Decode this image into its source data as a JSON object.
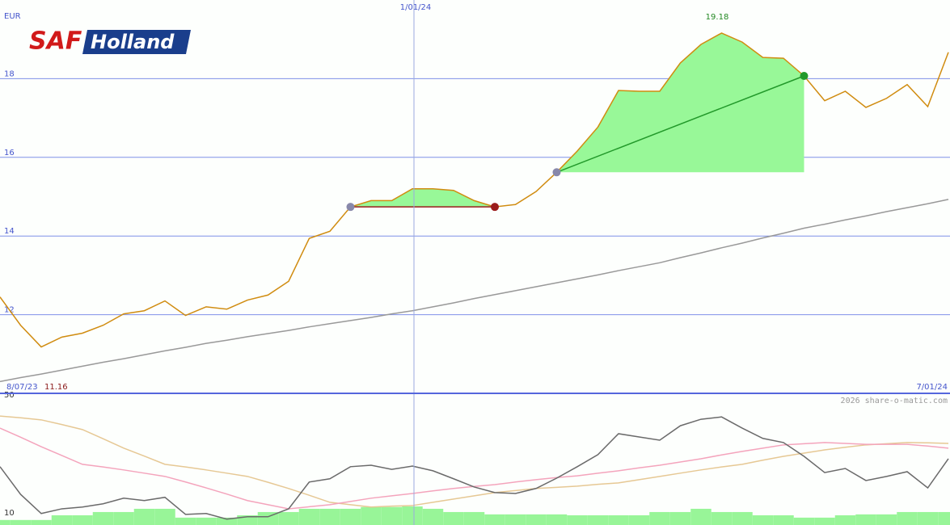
{
  "logo": {
    "left": "SAF",
    "right": "Holland"
  },
  "credit": "2026 share-o-matic.com",
  "chart_data": [
    {
      "type": "line",
      "unit": "EUR",
      "date_start": "8/07/23",
      "date_mid": "1/01/24",
      "date_end": "7/01/24",
      "max_label": 19.18,
      "min_label": 11.16,
      "ylim": [
        10,
        20
      ],
      "yticks": [
        12,
        14,
        16,
        18
      ],
      "grid": true,
      "series": [
        {
          "color": "#d08c10",
          "values": [
            12.45,
            11.73,
            11.18,
            11.43,
            11.53,
            11.73,
            12.02,
            12.1,
            12.35,
            11.98,
            12.2,
            12.14,
            12.37,
            12.5,
            12.85,
            13.94,
            14.12,
            14.74,
            14.9,
            14.9,
            15.2,
            15.2,
            15.16,
            14.9,
            14.74,
            14.8,
            15.13,
            15.62,
            16.16,
            16.77,
            17.7,
            17.68,
            17.68,
            18.4,
            18.87,
            19.16,
            18.93,
            18.54,
            18.52,
            18.07,
            17.44,
            17.68,
            17.27,
            17.5,
            17.85,
            17.29,
            18.67
          ]
        },
        {
          "color": "#999999",
          "values": [
            10.3,
            10.4,
            10.49,
            10.59,
            10.69,
            10.79,
            10.88,
            10.98,
            11.08,
            11.17,
            11.27,
            11.35,
            11.44,
            11.52,
            11.6,
            11.69,
            11.77,
            11.85,
            11.93,
            12.02,
            12.1,
            12.2,
            12.3,
            12.41,
            12.51,
            12.61,
            12.71,
            12.81,
            12.91,
            13.01,
            13.12,
            13.22,
            13.32,
            13.45,
            13.57,
            13.7,
            13.82,
            13.95,
            14.07,
            14.2,
            14.3,
            14.41,
            14.51,
            14.62,
            14.72,
            14.82,
            14.93
          ]
        }
      ],
      "trades": [
        {
          "color": "#9b1c1c",
          "values": [
            14.74,
            14.74
          ]
        },
        {
          "color": "#22992a",
          "values": [
            15.62,
            18.07
          ]
        }
      ]
    },
    {
      "type": "line",
      "ylim": [
        7.5,
        52.2
      ],
      "yticks": [
        10,
        50
      ],
      "bars": {
        "color": "#98f598",
        "values": [
          9.2,
          9.2,
          9.2,
          10.8,
          10.8,
          11.9,
          11.9,
          13.0,
          13.0,
          10.0,
          10.0,
          10.0,
          10.8,
          11.9,
          11.9,
          13.0,
          13.0,
          13.0,
          13.6,
          13.6,
          13.8,
          13.0,
          11.9,
          11.9,
          11.1,
          11.1,
          11.1,
          11.1,
          10.8,
          10.8,
          10.8,
          10.8,
          11.9,
          11.9,
          13.0,
          11.9,
          11.9,
          10.8,
          10.8,
          10.0,
          10.0,
          10.8,
          11.1,
          11.1,
          11.9,
          11.9,
          11.9
        ]
      },
      "series": [
        {
          "color": "#e6c894",
          "values": [
            44.5,
            43.9,
            43.2,
            41.6,
            39.9,
            36.8,
            33.6,
            30.9,
            28.1,
            27.2,
            26.2,
            25.1,
            24.0,
            22.0,
            19.9,
            17.6,
            15.2,
            14.4,
            13.6,
            13.9,
            14.1,
            15.2,
            16.3,
            17.4,
            18.5,
            19.2,
            19.9,
            20.3,
            20.7,
            21.3,
            21.8,
            22.9,
            24.0,
            25.1,
            26.2,
            27.2,
            28.1,
            29.5,
            30.8,
            31.9,
            33.0,
            33.9,
            34.7,
            35.1,
            35.5,
            35.4,
            35.2
          ]
        },
        {
          "color": "#f4a4bc",
          "values": [
            40.4,
            37.3,
            34.1,
            31.1,
            28.1,
            27.2,
            26.2,
            25.1,
            24.0,
            22.1,
            20.1,
            18.0,
            15.8,
            14.4,
            13.0,
            13.7,
            14.4,
            15.5,
            16.6,
            17.4,
            18.2,
            19.1,
            19.9,
            20.6,
            21.2,
            22.1,
            22.9,
            23.6,
            24.2,
            25.1,
            25.9,
            26.9,
            27.8,
            28.9,
            30.0,
            31.3,
            32.5,
            33.6,
            34.7,
            35.1,
            35.5,
            35.2,
            34.9,
            34.9,
            34.9,
            34.3,
            33.6
          ]
        },
        {
          "color": "#6a6a6a",
          "values": [
            27.3,
            17.9,
            11.4,
            13.0,
            13.6,
            14.7,
            16.6,
            15.8,
            16.9,
            11.1,
            11.4,
            9.5,
            10.3,
            10.3,
            13.0,
            22.1,
            23.2,
            27.3,
            27.8,
            26.4,
            27.5,
            25.9,
            23.2,
            20.4,
            18.5,
            18.2,
            19.9,
            23.4,
            27.3,
            31.4,
            38.5,
            37.4,
            36.3,
            41.2,
            43.4,
            44.2,
            40.4,
            36.9,
            35.5,
            30.8,
            25.3,
            26.7,
            22.6,
            24.0,
            25.6,
            20.1,
            30.0
          ]
        }
      ]
    }
  ]
}
